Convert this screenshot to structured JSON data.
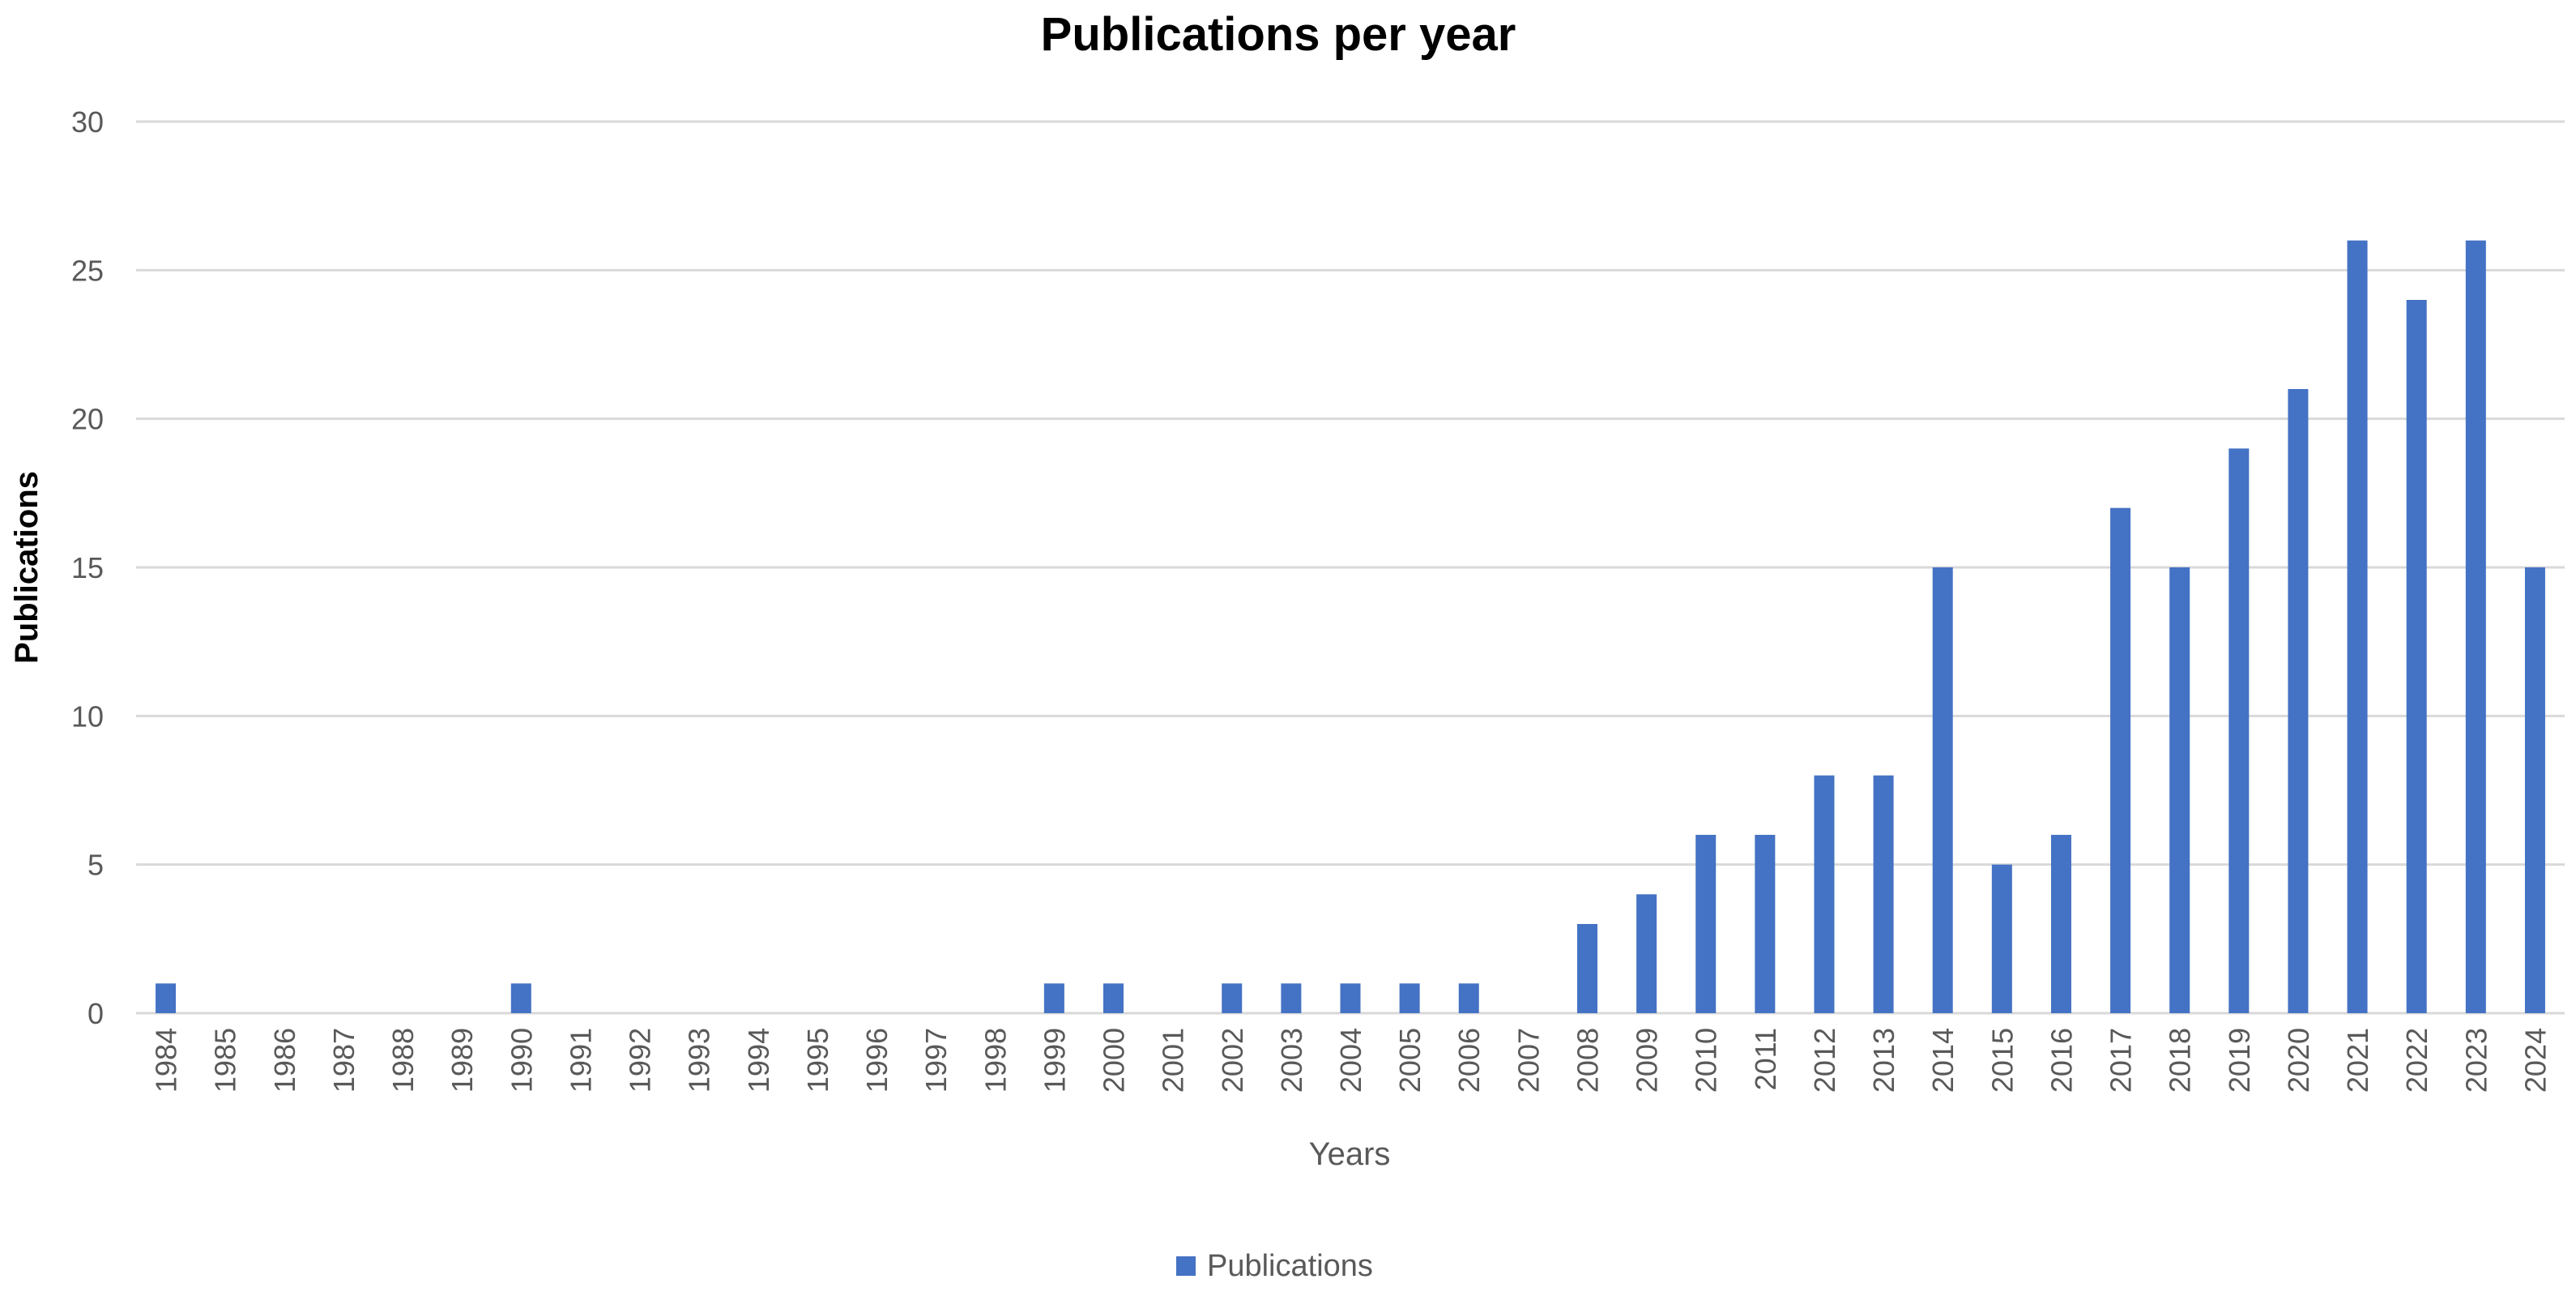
{
  "chart_data": {
    "type": "bar",
    "title": "Publications per year",
    "xlabel": "Years",
    "ylabel": "Publications",
    "ylim": [
      0,
      30
    ],
    "yticks": [
      0,
      5,
      10,
      15,
      20,
      25,
      30
    ],
    "grid": "horizontal",
    "legend_position": "bottom-center",
    "bar_color": "#4472C4",
    "categories": [
      "1984",
      "1985",
      "1986",
      "1987",
      "1988",
      "1989",
      "1990",
      "1991",
      "1992",
      "1993",
      "1994",
      "1995",
      "1996",
      "1997",
      "1998",
      "1999",
      "2000",
      "2001",
      "2002",
      "2003",
      "2004",
      "2005",
      "2006",
      "2007",
      "2008",
      "2009",
      "2010",
      "2011",
      "2012",
      "2013",
      "2014",
      "2015",
      "2016",
      "2017",
      "2018",
      "2019",
      "2020",
      "2021",
      "2022",
      "2023",
      "2024"
    ],
    "series": [
      {
        "name": "Publications",
        "values": [
          1,
          0,
          0,
          0,
          0,
          0,
          1,
          0,
          0,
          0,
          0,
          0,
          0,
          0,
          0,
          1,
          1,
          0,
          1,
          1,
          1,
          1,
          1,
          0,
          3,
          4,
          6,
          6,
          8,
          8,
          15,
          5,
          6,
          17,
          15,
          19,
          21,
          26,
          24,
          26,
          15
        ]
      }
    ]
  }
}
